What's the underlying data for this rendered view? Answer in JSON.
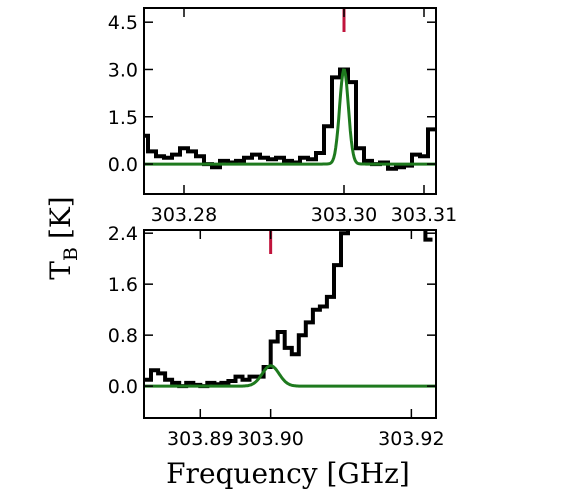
{
  "chart_data": [
    {
      "type": "line",
      "panel": "top",
      "xlim": [
        303.275,
        303.3115
      ],
      "ylim": [
        -0.95,
        4.95
      ],
      "xticks": [
        303.28,
        303.3,
        303.31
      ],
      "xticklabels": [
        "303.28",
        "303.30",
        "303.31"
      ],
      "yticks": [
        0.0,
        1.5,
        3.0,
        4.5
      ],
      "yticklabels": [
        "0.0",
        "1.5",
        "3.0",
        "4.5"
      ],
      "marker_x": 303.3,
      "marker_color": "#c0143c",
      "series": [
        {
          "style": "step",
          "color": "#000000",
          "x": [
            303.275,
            303.2755,
            303.2765,
            303.2775,
            303.2785,
            303.2795,
            303.2805,
            303.2815,
            303.2825,
            303.2835,
            303.2845,
            303.2855,
            303.2865,
            303.2875,
            303.2885,
            303.2895,
            303.2905,
            303.2915,
            303.2925,
            303.2935,
            303.2945,
            303.2955,
            303.2965,
            303.2975,
            303.2985,
            303.2995,
            303.3005,
            303.3015,
            303.3025,
            303.3035,
            303.3045,
            303.3055,
            303.3065,
            303.3075,
            303.3085,
            303.3095,
            303.3105,
            303.3115
          ],
          "y": [
            0.9,
            0.4,
            0.25,
            0.2,
            0.3,
            0.5,
            0.4,
            0.25,
            0.0,
            -0.1,
            0.1,
            0.05,
            0.1,
            0.2,
            0.3,
            0.2,
            0.15,
            0.2,
            0.1,
            0.05,
            0.2,
            0.15,
            0.35,
            1.2,
            2.75,
            3.0,
            2.6,
            0.5,
            0.1,
            0.0,
            0.05,
            -0.15,
            -0.1,
            -0.05,
            0.3,
            0.25,
            1.1,
            4.9
          ]
        },
        {
          "style": "line",
          "color": "#1e7a1e",
          "fit": "gaussian",
          "amplitude": 3.0,
          "center": 303.3,
          "sigma": 0.00055
        }
      ]
    },
    {
      "type": "line",
      "panel": "bottom",
      "xlim": [
        303.882,
        303.9235
      ],
      "ylim": [
        -0.5,
        2.45
      ],
      "xticks": [
        303.89,
        303.9,
        303.92
      ],
      "xticklabels": [
        "303.89",
        "303.90",
        "303.92"
      ],
      "yticks": [
        0.0,
        0.8,
        1.6,
        2.4
      ],
      "yticklabels": [
        "0.0",
        "0.8",
        "1.6",
        "2.4"
      ],
      "marker_x": 303.9,
      "marker_color": "#c0143c",
      "series": [
        {
          "style": "step",
          "color": "#000000",
          "x": [
            303.882,
            303.883,
            303.884,
            303.885,
            303.886,
            303.887,
            303.888,
            303.889,
            303.89,
            303.891,
            303.892,
            303.893,
            303.894,
            303.895,
            303.896,
            303.897,
            303.898,
            303.899,
            303.9,
            303.901,
            303.902,
            303.903,
            303.904,
            303.905,
            303.906,
            303.907,
            303.908,
            303.909,
            303.91,
            303.911,
            303.912,
            303.913,
            303.914,
            303.915,
            303.916,
            303.917,
            303.918,
            303.919,
            303.92,
            303.921,
            303.922,
            303.923
          ],
          "y": [
            0.1,
            0.25,
            0.2,
            0.1,
            0.05,
            0.0,
            0.05,
            0.02,
            0.0,
            0.05,
            0.03,
            0.05,
            0.08,
            0.15,
            0.1,
            0.15,
            0.15,
            0.3,
            0.7,
            0.85,
            0.6,
            0.5,
            0.8,
            1.0,
            1.2,
            1.25,
            1.4,
            1.9,
            2.4,
            2.6,
            2.6,
            2.6,
            2.6,
            2.6,
            2.6,
            2.6,
            2.6,
            2.6,
            2.6,
            2.6,
            2.3,
            2.15
          ]
        },
        {
          "style": "line",
          "color": "#1e7a1e",
          "fit": "gaussian",
          "amplitude": 0.32,
          "center": 303.9,
          "sigma": 0.0012
        }
      ]
    }
  ],
  "ylabel_main": "T",
  "ylabel_sub": "B",
  "ylabel_unit": "[K]",
  "xlabel": "Frequency [GHz]"
}
